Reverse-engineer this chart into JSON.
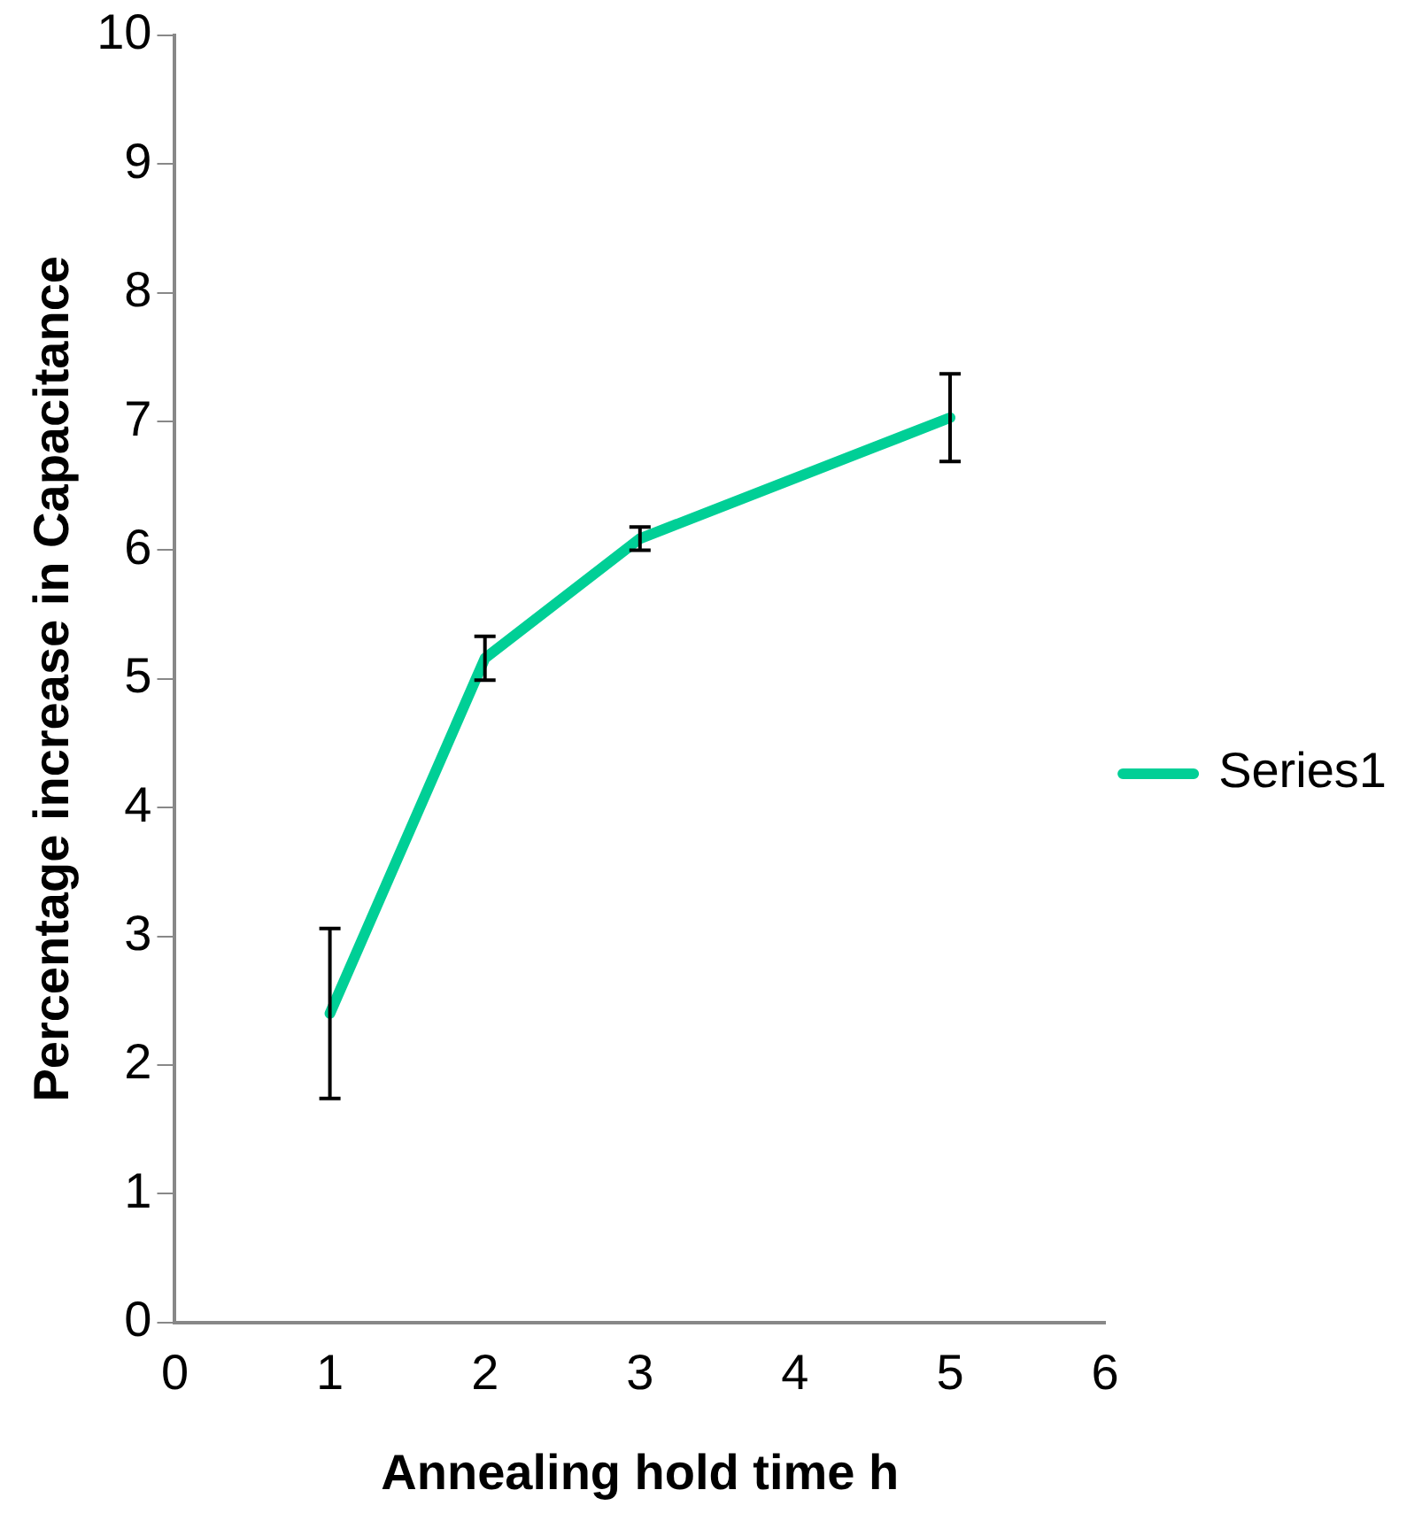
{
  "chart_data": {
    "type": "line",
    "xlabel": "Annealing hold time h",
    "ylabel": "Percentage increase in Capacitance",
    "x": [
      1,
      2,
      3,
      5
    ],
    "series": [
      {
        "name": "Series1",
        "color": "#00cf96",
        "values": [
          2.4,
          5.16,
          6.09,
          7.03
        ],
        "errors": [
          0.66,
          0.17,
          0.09,
          0.34
        ]
      }
    ],
    "xlim": [
      0,
      6
    ],
    "xticks": [
      0,
      1,
      2,
      3,
      4,
      5,
      6
    ],
    "ylim": [
      0,
      10
    ],
    "yticks": [
      0,
      1,
      2,
      3,
      4,
      5,
      6,
      7,
      8,
      9,
      10
    ],
    "grid": false,
    "legend": "right",
    "marker": "none",
    "line_style": "solid"
  }
}
